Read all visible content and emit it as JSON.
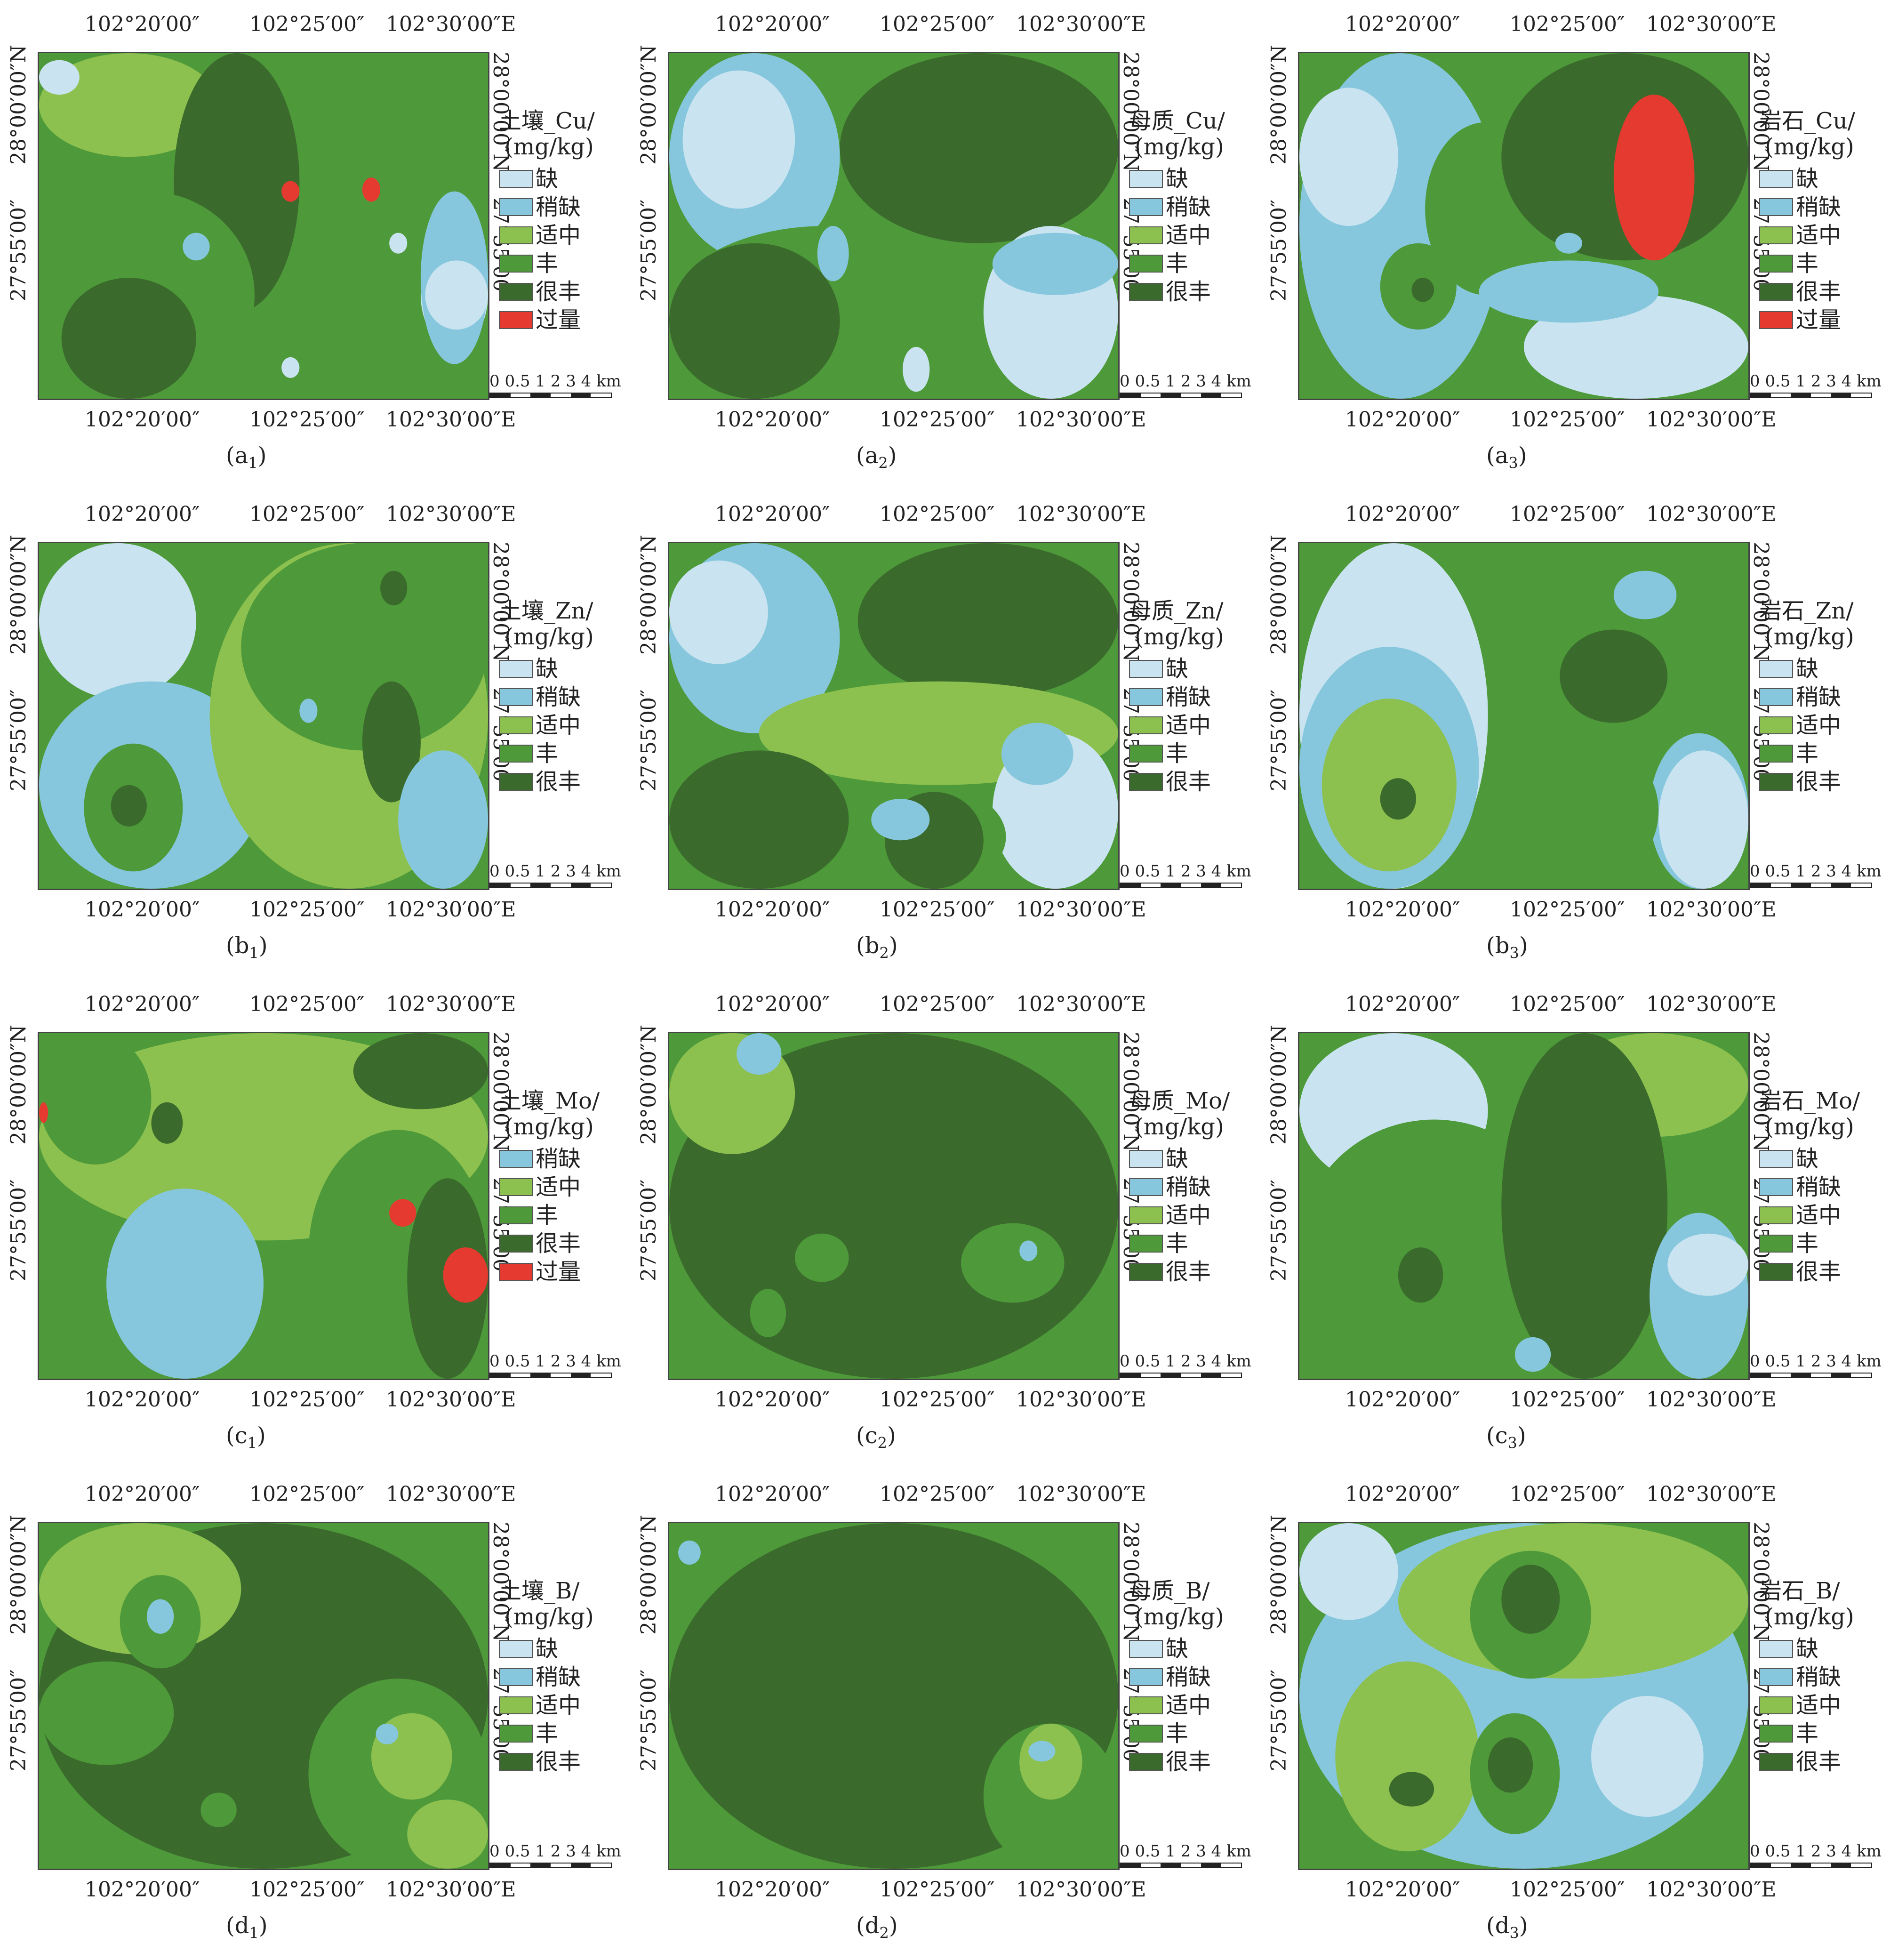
{
  "coords": {
    "top_lon": [
      "102°20′00″",
      "102°25′00″",
      "102°30′00″E"
    ],
    "bottom_lon": [
      "102°20′00″",
      "102°25′00″",
      "102°30′00″E"
    ],
    "left_lat": [
      "28°00′00″N",
      "27°55′00″"
    ],
    "right_lat": [
      "28°00′00″N",
      "27°55′00″"
    ]
  },
  "scale_text": "0 0.5 1  2  3 4 km",
  "colors": {
    "缺": "#c9e4f0",
    "稍缺": "#86c7dd",
    "适中": "#8dc14f",
    "丰": "#4e9a3a",
    "很丰": "#3a6b2c",
    "过量": "#e53a2f"
  },
  "panels": [
    {
      "id": "a1",
      "caption_main": "(a",
      "caption_sub": "1",
      "caption_end": ")",
      "title": "土壤_Cu/",
      "unit": "(mg/kg)",
      "legend": [
        "缺",
        "稍缺",
        "适中",
        "丰",
        "很丰",
        "过量"
      ]
    },
    {
      "id": "a2",
      "caption_main": "(a",
      "caption_sub": "2",
      "caption_end": ")",
      "title": "母质_Cu/",
      "unit": "(mg/kg)",
      "legend": [
        "缺",
        "稍缺",
        "适中",
        "丰",
        "很丰"
      ]
    },
    {
      "id": "a3",
      "caption_main": "(a",
      "caption_sub": "3",
      "caption_end": ")",
      "title": "岩石_Cu/",
      "unit": "(mg/kg)",
      "legend": [
        "缺",
        "稍缺",
        "适中",
        "丰",
        "很丰",
        "过量"
      ]
    },
    {
      "id": "b1",
      "caption_main": "(b",
      "caption_sub": "1",
      "caption_end": ")",
      "title": "土壤_Zn/",
      "unit": "(mg/kg)",
      "legend": [
        "缺",
        "稍缺",
        "适中",
        "丰",
        "很丰"
      ]
    },
    {
      "id": "b2",
      "caption_main": "(b",
      "caption_sub": "2",
      "caption_end": ")",
      "title": "母质_Zn/",
      "unit": "(mg/kg)",
      "legend": [
        "缺",
        "稍缺",
        "适中",
        "丰",
        "很丰"
      ]
    },
    {
      "id": "b3",
      "caption_main": "(b",
      "caption_sub": "3",
      "caption_end": ")",
      "title": "岩石_Zn/",
      "unit": "(mg/kg)",
      "legend": [
        "缺",
        "稍缺",
        "适中",
        "丰",
        "很丰"
      ]
    },
    {
      "id": "c1",
      "caption_main": "(c",
      "caption_sub": "1",
      "caption_end": ")",
      "title": "土壤_Mo/",
      "unit": "(mg/kg)",
      "legend": [
        "稍缺",
        "适中",
        "丰",
        "很丰",
        "过量"
      ]
    },
    {
      "id": "c2",
      "caption_main": "(c",
      "caption_sub": "2",
      "caption_end": ")",
      "title": "母质_Mo/",
      "unit": "(mg/kg)",
      "legend": [
        "缺",
        "稍缺",
        "适中",
        "丰",
        "很丰"
      ]
    },
    {
      "id": "c3",
      "caption_main": "(c",
      "caption_sub": "3",
      "caption_end": ")",
      "title": "岩石_Mo/",
      "unit": "(mg/kg)",
      "legend": [
        "缺",
        "稍缺",
        "适中",
        "丰",
        "很丰"
      ]
    },
    {
      "id": "d1",
      "caption_main": "(d",
      "caption_sub": "1",
      "caption_end": ")",
      "title": "土壤_B/",
      "unit": "(mg/kg)",
      "legend": [
        "缺",
        "稍缺",
        "适中",
        "丰",
        "很丰"
      ]
    },
    {
      "id": "d2",
      "caption_main": "(d",
      "caption_sub": "2",
      "caption_end": ")",
      "title": "母质_B/",
      "unit": "(mg/kg)",
      "legend": [
        "缺",
        "稍缺",
        "适中",
        "丰",
        "很丰"
      ]
    },
    {
      "id": "d3",
      "caption_main": "(d",
      "caption_sub": "3",
      "caption_end": ")",
      "title": "岩石_B/",
      "unit": "(mg/kg)",
      "legend": [
        "缺",
        "稍缺",
        "适中",
        "丰",
        "很丰"
      ]
    }
  ]
}
